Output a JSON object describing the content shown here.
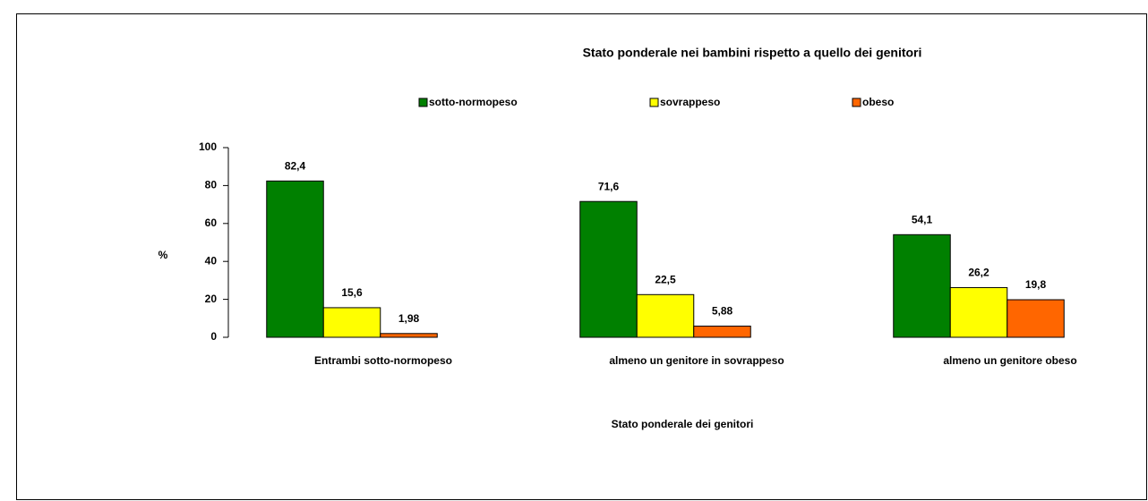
{
  "chart_data": {
    "type": "bar",
    "title": "Stato ponderale nei bambini rispetto a quello dei genitori",
    "xlabel": "Stato ponderale dei genitori",
    "ylabel": "%",
    "categories": [
      "Entrambi sotto-normopeso",
      "almeno un genitore in sovrappeso",
      "almeno un genitore obeso"
    ],
    "series": [
      {
        "name": "sotto-normopeso",
        "color": "#008000",
        "values": [
          82.4,
          71.6,
          54.1
        ],
        "value_labels": [
          "82,4",
          "71,6",
          "54,1"
        ]
      },
      {
        "name": "sovrappeso",
        "color": "#ffff00",
        "values": [
          15.6,
          22.5,
          26.2
        ],
        "value_labels": [
          "15,6",
          "22,5",
          "26,2"
        ]
      },
      {
        "name": "obeso",
        "color": "#ff6600",
        "values": [
          1.98,
          5.88,
          19.8
        ],
        "value_labels": [
          "1,98",
          "5,88",
          "19,8"
        ]
      }
    ],
    "ylim": [
      0,
      100
    ],
    "yticks": [
      0,
      20,
      40,
      60,
      80,
      100
    ],
    "grid": false
  }
}
